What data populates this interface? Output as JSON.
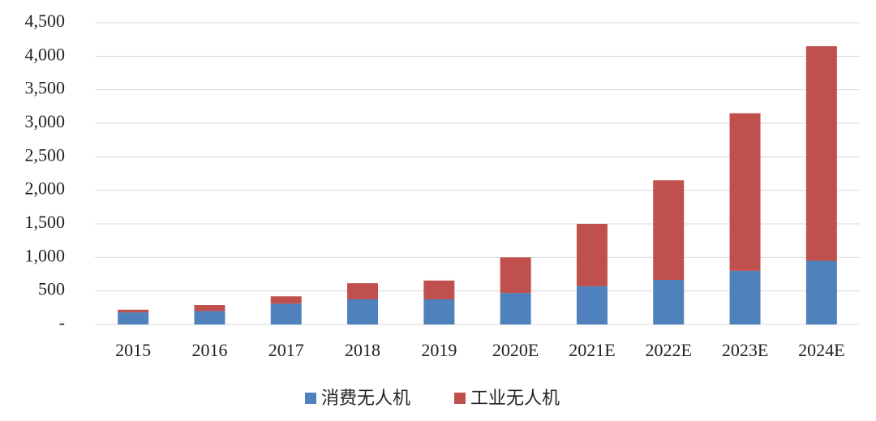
{
  "chart_data": {
    "type": "stacked-bar",
    "categories": [
      "2015",
      "2016",
      "2017",
      "2018",
      "2019",
      "2020E",
      "2021E",
      "2022E",
      "2023E",
      "2024E"
    ],
    "series": [
      {
        "name": "消费无人机",
        "color": "#4f81bd",
        "values": [
          180,
          200,
          310,
          375,
          375,
          470,
          570,
          665,
          800,
          950
        ]
      },
      {
        "name": "工业无人机",
        "color": "#c0504d",
        "values": [
          40,
          90,
          110,
          240,
          280,
          530,
          930,
          1485,
          2350,
          3200
        ]
      }
    ],
    "ylim": [
      0,
      4500
    ],
    "yticks": [
      {
        "value": 0,
        "label": "-"
      },
      500,
      {
        "value": 1000,
        "label": "1,000"
      },
      {
        "value": 1500,
        "label": "1,500"
      },
      {
        "value": 2000,
        "label": "2,000"
      },
      {
        "value": 2500,
        "label": "2,500"
      },
      {
        "value": 3000,
        "label": "3,000"
      },
      {
        "value": 3500,
        "label": "3,500"
      },
      {
        "value": 4000,
        "label": "4,000"
      },
      {
        "value": 4500,
        "label": "4,500"
      }
    ],
    "grid": true,
    "legend": "bottom"
  }
}
